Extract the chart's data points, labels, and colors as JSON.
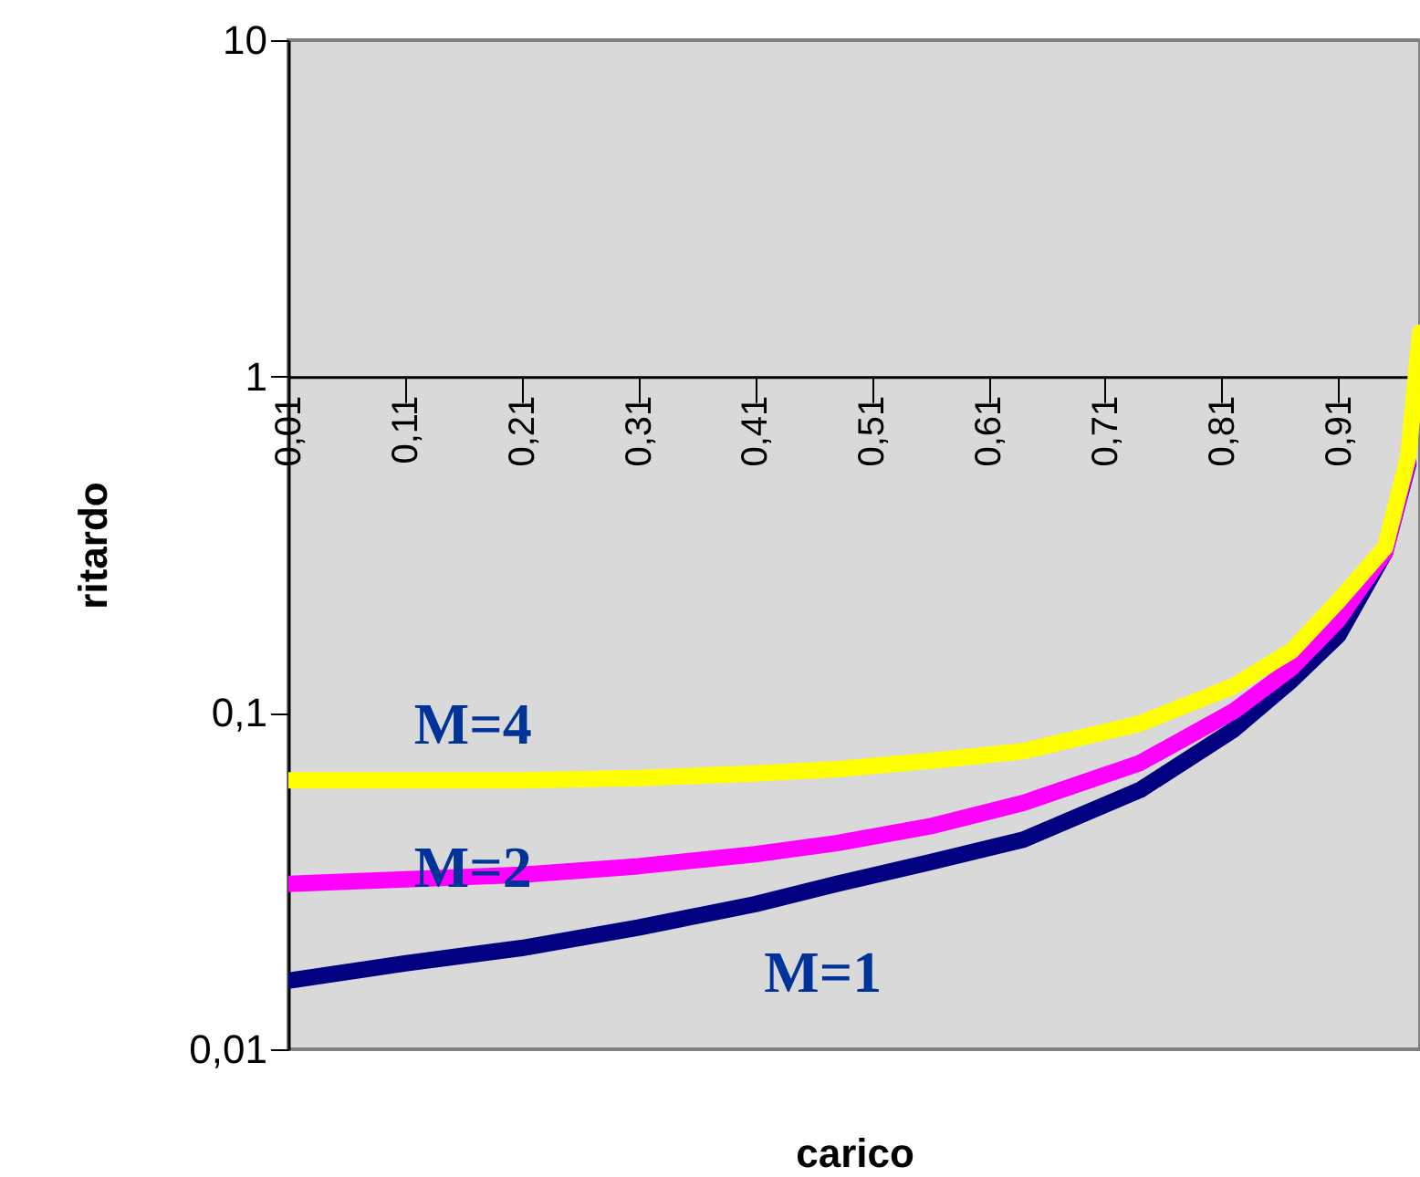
{
  "chart_data": {
    "type": "line",
    "xlabel": "carico",
    "ylabel": "ritardo",
    "log": "y",
    "x": [
      0.01,
      0.11,
      0.21,
      0.31,
      0.41,
      0.48,
      0.56,
      0.64,
      0.74,
      0.82,
      0.87,
      0.91,
      0.95,
      0.97,
      0.98
    ],
    "series": [
      {
        "name": "M=1",
        "color": "#000080",
        "values": [
          0.016,
          0.018,
          0.02,
          0.023,
          0.027,
          0.031,
          0.036,
          0.042,
          0.059,
          0.089,
          0.125,
          0.17,
          0.3,
          0.55,
          null
        ]
      },
      {
        "name": "M=2",
        "color": "#ff00ff",
        "values": [
          0.031,
          0.032,
          0.033,
          0.035,
          0.038,
          0.041,
          0.046,
          0.054,
          0.071,
          0.101,
          0.136,
          0.189,
          0.3,
          0.56,
          null
        ]
      },
      {
        "name": "M=4",
        "color": "#ffff00",
        "values": [
          0.063,
          0.063,
          0.063,
          0.064,
          0.066,
          0.068,
          0.072,
          0.077,
          0.093,
          0.12,
          0.153,
          0.215,
          0.31,
          0.58,
          1.35
        ]
      }
    ],
    "xlim": [
      0.01,
      0.98
    ],
    "xticks": [
      {
        "value": 0.01,
        "label": "0,01"
      },
      {
        "value": 0.11,
        "label": "0,11"
      },
      {
        "value": 0.21,
        "label": "0,21"
      },
      {
        "value": 0.31,
        "label": "0,31"
      },
      {
        "value": 0.41,
        "label": "0,41"
      },
      {
        "value": 0.51,
        "label": "0,51"
      },
      {
        "value": 0.61,
        "label": "0,61"
      },
      {
        "value": 0.71,
        "label": "0,71"
      },
      {
        "value": 0.81,
        "label": "0,81"
      },
      {
        "value": 0.91,
        "label": "0,91"
      }
    ],
    "ylim": [
      0.01,
      10
    ],
    "yticks": [
      {
        "value": 0.01,
        "label": "0,01"
      },
      {
        "value": 0.1,
        "label": "0,1"
      },
      1,
      10
    ],
    "grid": false,
    "marker": "none",
    "line_style": "solid"
  }
}
